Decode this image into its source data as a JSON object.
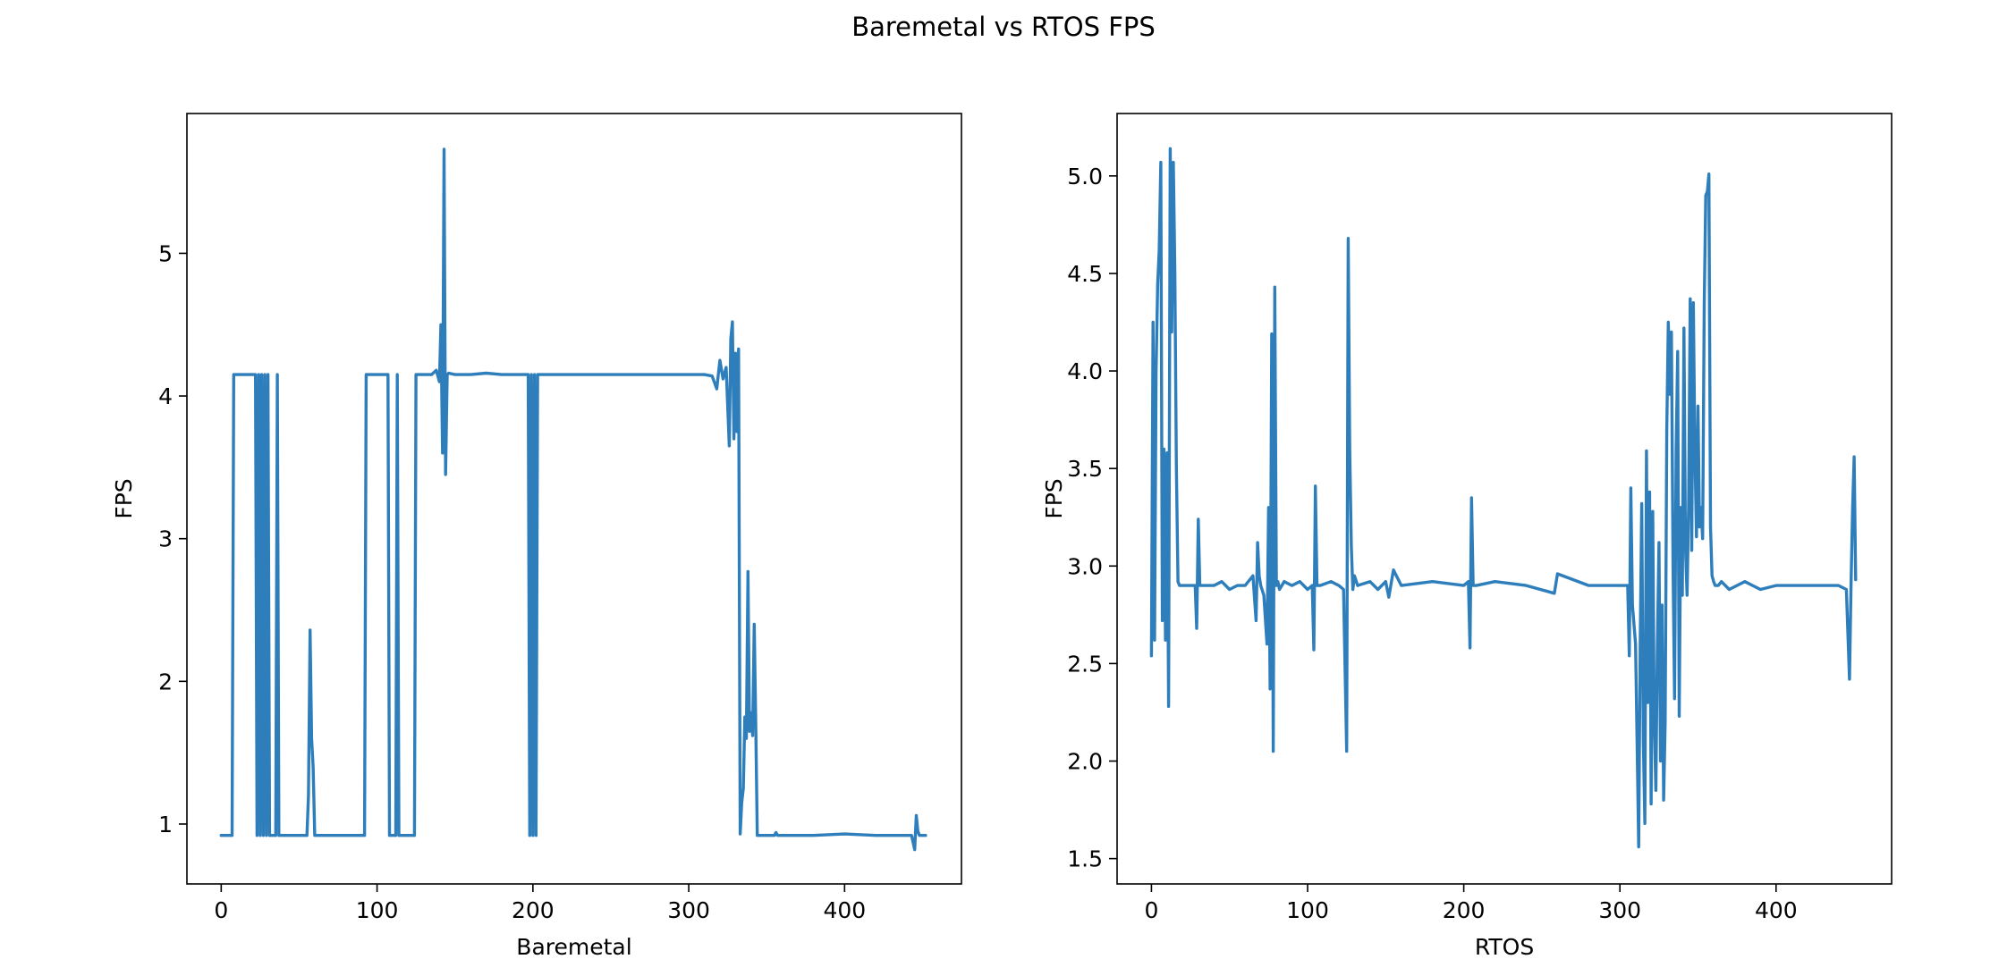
{
  "figure": {
    "title": "Baremetal vs RTOS FPS",
    "background": "#ffffff",
    "line_color": "#2e7ebc"
  },
  "chart_data": [
    {
      "type": "line",
      "title": "",
      "xlabel": "Baremetal",
      "ylabel": "FPS",
      "xlim": [
        -22,
        475
      ],
      "ylim": [
        0.58,
        5.98
      ],
      "xticks": [
        0,
        100,
        200,
        300,
        400
      ],
      "yticks": [
        1,
        2,
        3,
        4,
        5
      ],
      "grid": false,
      "series": [
        {
          "x": [
            0,
            7,
            8,
            22,
            23,
            24,
            25,
            26,
            27,
            28,
            29,
            30,
            31,
            35,
            36,
            37,
            55,
            56,
            57,
            58,
            59,
            60,
            61,
            62,
            92,
            93,
            107,
            108,
            112,
            113,
            114,
            124,
            125,
            135,
            138,
            140,
            141,
            142,
            143,
            144,
            145,
            146,
            150,
            160,
            170,
            180,
            190,
            197,
            198,
            199,
            200,
            201,
            202,
            203,
            210,
            230,
            250,
            270,
            290,
            310,
            315,
            318,
            320,
            322,
            324,
            326,
            327,
            328,
            329,
            330,
            331,
            332,
            333,
            334,
            335,
            336,
            337,
            338,
            339,
            340,
            341,
            342,
            343,
            344,
            345,
            346,
            355,
            356,
            357,
            380,
            400,
            420,
            440,
            443,
            444,
            445,
            446,
            447,
            448,
            452
          ],
          "y": [
            0.92,
            0.92,
            4.15,
            4.15,
            0.92,
            4.15,
            0.92,
            4.15,
            0.92,
            4.15,
            0.92,
            4.15,
            0.92,
            0.92,
            4.15,
            0.92,
            0.92,
            1.2,
            2.36,
            1.6,
            1.4,
            0.92,
            0.92,
            0.92,
            0.92,
            4.15,
            4.15,
            0.92,
            0.92,
            4.15,
            0.92,
            0.92,
            4.15,
            4.15,
            4.18,
            4.1,
            4.5,
            3.6,
            5.73,
            3.45,
            4.15,
            4.16,
            4.15,
            4.15,
            4.16,
            4.15,
            4.15,
            4.15,
            0.92,
            4.15,
            0.92,
            4.15,
            0.92,
            4.15,
            4.15,
            4.15,
            4.15,
            4.15,
            4.15,
            4.15,
            4.14,
            4.05,
            4.25,
            4.12,
            4.2,
            3.65,
            4.4,
            4.52,
            3.7,
            4.3,
            3.75,
            4.33,
            0.93,
            1.15,
            1.25,
            1.75,
            1.6,
            2.77,
            1.65,
            1.78,
            1.62,
            2.4,
            1.7,
            0.92,
            0.92,
            0.92,
            0.92,
            0.94,
            0.92,
            0.92,
            0.93,
            0.92,
            0.92,
            0.92,
            0.87,
            0.82,
            1.06,
            0.95,
            0.92,
            0.92
          ]
        }
      ]
    },
    {
      "type": "line",
      "title": "",
      "xlabel": "RTOS",
      "ylabel": "FPS",
      "xlim": [
        -22,
        474
      ],
      "ylim": [
        1.37,
        5.32
      ],
      "xticks": [
        0,
        100,
        200,
        300,
        400
      ],
      "yticks": [
        1.5,
        2.0,
        2.5,
        3.0,
        3.5,
        4.0,
        4.5,
        5.0
      ],
      "grid": false,
      "series": [
        {
          "x": [
            0,
            1,
            2,
            3,
            4,
            5,
            6,
            7,
            8,
            9,
            10,
            11,
            12,
            13,
            14,
            15,
            16,
            17,
            18,
            25,
            28,
            29,
            30,
            31,
            33,
            40,
            45,
            50,
            55,
            60,
            65,
            67,
            68,
            69,
            70,
            72,
            74,
            75,
            76,
            77,
            78,
            79,
            80,
            81,
            82,
            85,
            90,
            95,
            100,
            103,
            104,
            105,
            106,
            108,
            115,
            120,
            123,
            125,
            126,
            127,
            128,
            129,
            130,
            132,
            140,
            145,
            150,
            152,
            155,
            160,
            180,
            200,
            203,
            204,
            205,
            206,
            208,
            220,
            240,
            258,
            260,
            280,
            300,
            305,
            306,
            307,
            308,
            310,
            311,
            312,
            313,
            314,
            315,
            316,
            317,
            318,
            319,
            320,
            321,
            322,
            323,
            324,
            325,
            326,
            327,
            328,
            329,
            330,
            331,
            332,
            333,
            334,
            335,
            336,
            337,
            338,
            339,
            340,
            341,
            342,
            343,
            344,
            345,
            346,
            347,
            348,
            349,
            350,
            351,
            352,
            353,
            354,
            355,
            356,
            357,
            358,
            359,
            360,
            361,
            362,
            363,
            365,
            370,
            375,
            380,
            385,
            390,
            400,
            420,
            440,
            445,
            447,
            448,
            449,
            450,
            451
          ],
          "y": [
            2.54,
            4.25,
            2.62,
            4.0,
            4.45,
            4.62,
            5.07,
            2.72,
            3.6,
            2.62,
            3.58,
            2.28,
            5.14,
            4.2,
            5.07,
            4.5,
            3.5,
            2.92,
            2.9,
            2.9,
            2.9,
            2.68,
            3.24,
            2.9,
            2.9,
            2.9,
            2.92,
            2.88,
            2.9,
            2.9,
            2.95,
            2.72,
            3.12,
            2.95,
            2.9,
            2.85,
            2.6,
            3.3,
            2.37,
            4.19,
            2.05,
            4.43,
            2.9,
            2.92,
            2.88,
            2.92,
            2.9,
            2.92,
            2.88,
            2.9,
            2.57,
            3.41,
            2.9,
            2.9,
            2.92,
            2.9,
            2.88,
            2.05,
            4.68,
            3.6,
            3.1,
            2.88,
            2.95,
            2.9,
            2.92,
            2.88,
            2.92,
            2.84,
            2.98,
            2.9,
            2.92,
            2.9,
            2.92,
            2.58,
            3.35,
            2.9,
            2.9,
            2.92,
            2.9,
            2.86,
            2.96,
            2.9,
            2.9,
            2.9,
            2.54,
            3.4,
            2.8,
            2.6,
            2.1,
            1.56,
            2.6,
            3.32,
            2.1,
            1.68,
            3.59,
            2.3,
            3.38,
            1.78,
            3.28,
            2.2,
            1.85,
            2.6,
            3.12,
            2.0,
            2.8,
            1.8,
            2.2,
            3.7,
            4.25,
            3.88,
            4.2,
            3.0,
            2.32,
            3.6,
            4.1,
            2.23,
            3.3,
            2.85,
            4.22,
            3.1,
            2.85,
            3.3,
            4.37,
            3.08,
            4.35,
            3.6,
            3.15,
            3.82,
            3.2,
            3.3,
            3.14,
            4.35,
            4.9,
            4.92,
            5.01,
            3.2,
            2.95,
            2.92,
            2.9,
            2.9,
            2.9,
            2.92,
            2.88,
            2.9,
            2.92,
            2.9,
            2.88,
            2.9,
            2.9,
            2.9,
            2.88,
            2.42,
            2.9,
            3.3,
            3.56,
            2.93
          ]
        }
      ]
    }
  ]
}
